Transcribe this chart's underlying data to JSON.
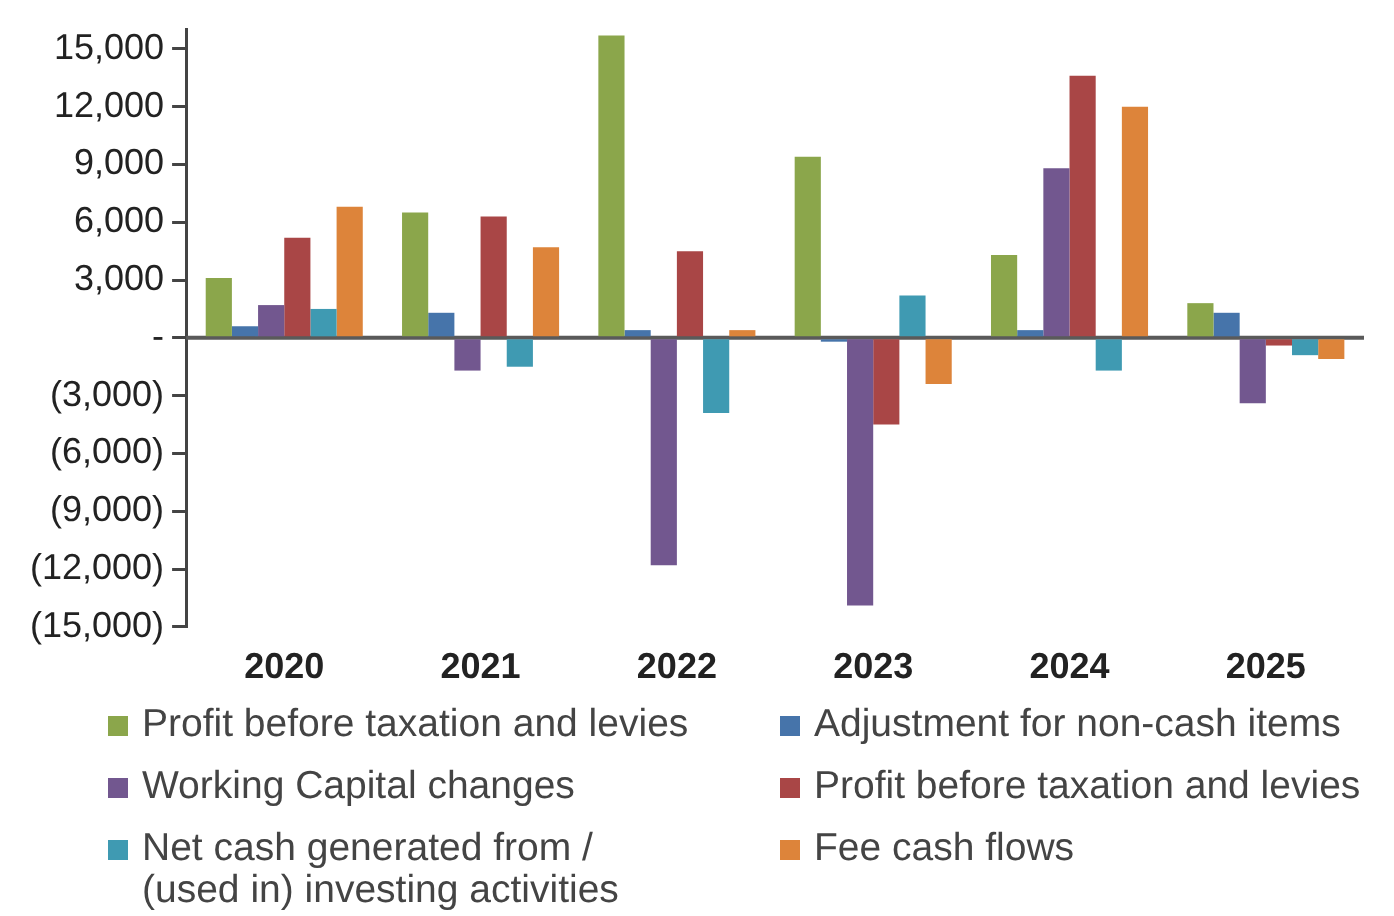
{
  "chart_data": {
    "type": "bar",
    "categories": [
      "2020",
      "2021",
      "2022",
      "2023",
      "2024",
      "2025"
    ],
    "series": [
      {
        "name": "Profit before taxation and levies",
        "color": "#8ba64b",
        "values": [
          3100,
          6500,
          15700,
          9400,
          4300,
          1800
        ]
      },
      {
        "name": "Adjustment for non-cash items",
        "color": "#4674aa",
        "values": [
          600,
          1300,
          400,
          -200,
          400,
          1300
        ]
      },
      {
        "name": "Working Capital changes",
        "color": "#72578f",
        "values": [
          1700,
          -1700,
          -11800,
          -13900,
          8800,
          -3400
        ]
      },
      {
        "name": "Profit before taxation and levies",
        "color": "#a94646",
        "values": [
          5200,
          6300,
          4500,
          -4500,
          13600,
          -400
        ]
      },
      {
        "name": "Net cash generated from / (used in) investing activities",
        "color": "#3f9ab2",
        "values": [
          1500,
          -1500,
          -3900,
          2200,
          -1700,
          -900
        ]
      },
      {
        "name": "Fee cash flows",
        "color": "#dd843a",
        "values": [
          6800,
          4700,
          400,
          -2400,
          12000,
          -1100
        ]
      }
    ],
    "ylim": [
      -15000,
      16000
    ],
    "yticks": [
      {
        "value": -15000,
        "label": "(15,000)"
      },
      {
        "value": -12000,
        "label": "(12,000)"
      },
      {
        "value": -9000,
        "label": "(9,000)"
      },
      {
        "value": -6000,
        "label": "(6,000)"
      },
      {
        "value": -3000,
        "label": "(3,000)"
      },
      {
        "value": 0,
        "label": "-"
      },
      {
        "value": 3000,
        "label": "3,000"
      },
      {
        "value": 6000,
        "label": "6,000"
      },
      {
        "value": 9000,
        "label": "9,000"
      },
      {
        "value": 12000,
        "label": "12,000"
      },
      {
        "value": 15000,
        "label": "15,000"
      }
    ],
    "legend": "bottom"
  }
}
